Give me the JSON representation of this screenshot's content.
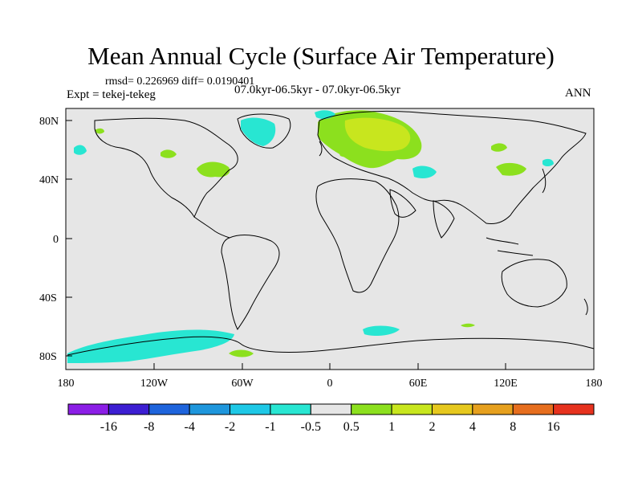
{
  "title": "Mean Annual Cycle (Surface Air Temperature)",
  "stats_line": "rmsd= 0.226969 diff= 0.0190401",
  "experiment_label": "Expt = tekej-tekeg",
  "period_label": "07.0kyr-06.5kyr - 07.0kyr-06.5kyr",
  "season_label": "ANN",
  "latitude_ticks": [
    "80N",
    "40N",
    "0",
    "40S",
    "80S"
  ],
  "longitude_ticks": [
    "180",
    "120W",
    "60W",
    "0",
    "60E",
    "120E",
    "180"
  ],
  "colorbar": {
    "boundaries": [
      "-16",
      "-8",
      "-4",
      "-2",
      "-1",
      "-0.5",
      "0.5",
      "1",
      "2",
      "4",
      "8",
      "16"
    ],
    "colors": [
      "#8b1ee6",
      "#3c1ed2",
      "#1e64dc",
      "#1e96dc",
      "#1ec8e6",
      "#28e6d2",
      "#e6e6e6",
      "#8ce01e",
      "#c8e61e",
      "#e6c81e",
      "#e6a01e",
      "#e66e1e",
      "#e6321e"
    ]
  },
  "map_background_color": "#e6e6e6",
  "anomaly_colors": {
    "positive_light": "#8ce01e",
    "positive_mid": "#c8e61e",
    "negative_light": "#28e6d2"
  }
}
